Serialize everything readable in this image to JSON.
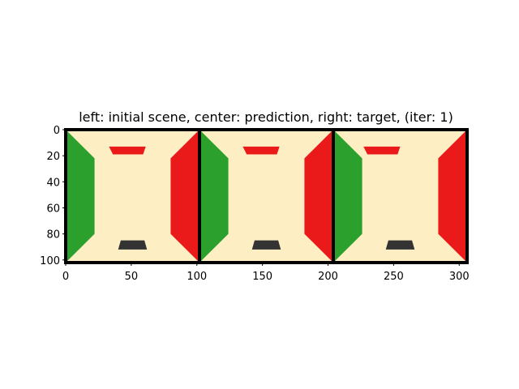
{
  "chart_data": {
    "type": "image",
    "title": "left: initial scene, center: prediction, right: target, (iter: 1)",
    "xlim": [
      0,
      306
    ],
    "ylim": [
      102,
      0
    ],
    "x_ticks": [
      0,
      50,
      100,
      150,
      200,
      250,
      300
    ],
    "y_ticks": [
      0,
      20,
      40,
      60,
      80,
      100
    ],
    "panel_width": 102,
    "panels": [
      {
        "name": "initial scene",
        "offset": 0,
        "bar_top": {
          "x": [
            33,
            61
          ],
          "y": [
            13,
            19
          ]
        },
        "bar_bottom": {
          "x": [
            40,
            62
          ],
          "y": [
            85,
            92
          ]
        }
      },
      {
        "name": "prediction",
        "offset": 102,
        "bar_top": {
          "x": [
            33,
            61
          ],
          "y": [
            13,
            19
          ]
        },
        "bar_bottom": {
          "x": [
            40,
            62
          ],
          "y": [
            85,
            92
          ]
        }
      },
      {
        "name": "target",
        "offset": 204,
        "bar_top": {
          "x": [
            23,
            51
          ],
          "y": [
            13,
            19
          ]
        },
        "bar_bottom": {
          "x": [
            40,
            62
          ],
          "y": [
            85,
            92
          ]
        }
      }
    ],
    "colors": {
      "floor": "#fdeec3",
      "left_wall": "#2ca02c",
      "right_wall": "#ea1a1a",
      "top_bar": "#ea1a1a",
      "bottom_bar": "#333333",
      "separator": "#000000"
    }
  }
}
